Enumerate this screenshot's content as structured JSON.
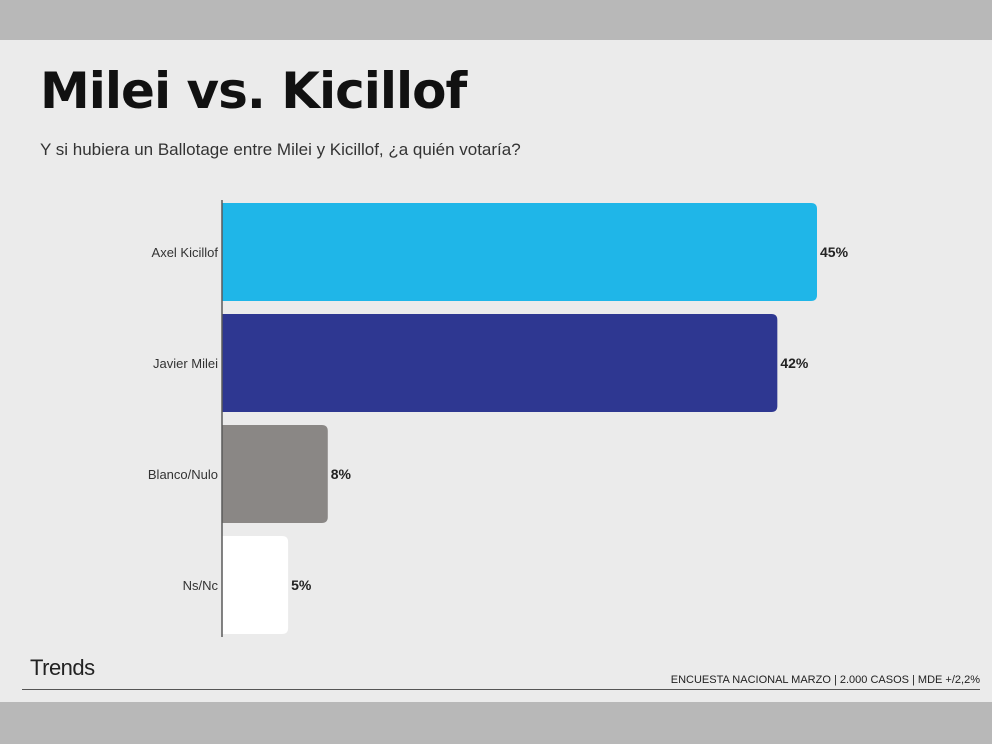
{
  "header": {
    "title": "Milei vs. Kicillof",
    "subtitle": "Y si hubiera un Ballotage entre Milei y Kicillof, ¿a quién votaría?"
  },
  "footer": {
    "brand": "Trends",
    "note": "ENCUESTA NACIONAL MARZO | 2.000 CASOS | MDE +/2,2%"
  },
  "chart_data": {
    "type": "bar",
    "orientation": "horizontal",
    "categories": [
      "Axel Kicillof",
      "Javier Milei",
      "Blanco/Nulo",
      "Ns/Nc"
    ],
    "values": [
      45,
      42,
      8,
      5
    ],
    "value_labels": [
      "45%",
      "42%",
      "8%",
      "5%"
    ],
    "colors": [
      "#1fb6e8",
      "#2e3791",
      "#8a8785",
      "#ffffff"
    ],
    "xlim": [
      0,
      45
    ],
    "grid": false,
    "legend": "none"
  }
}
